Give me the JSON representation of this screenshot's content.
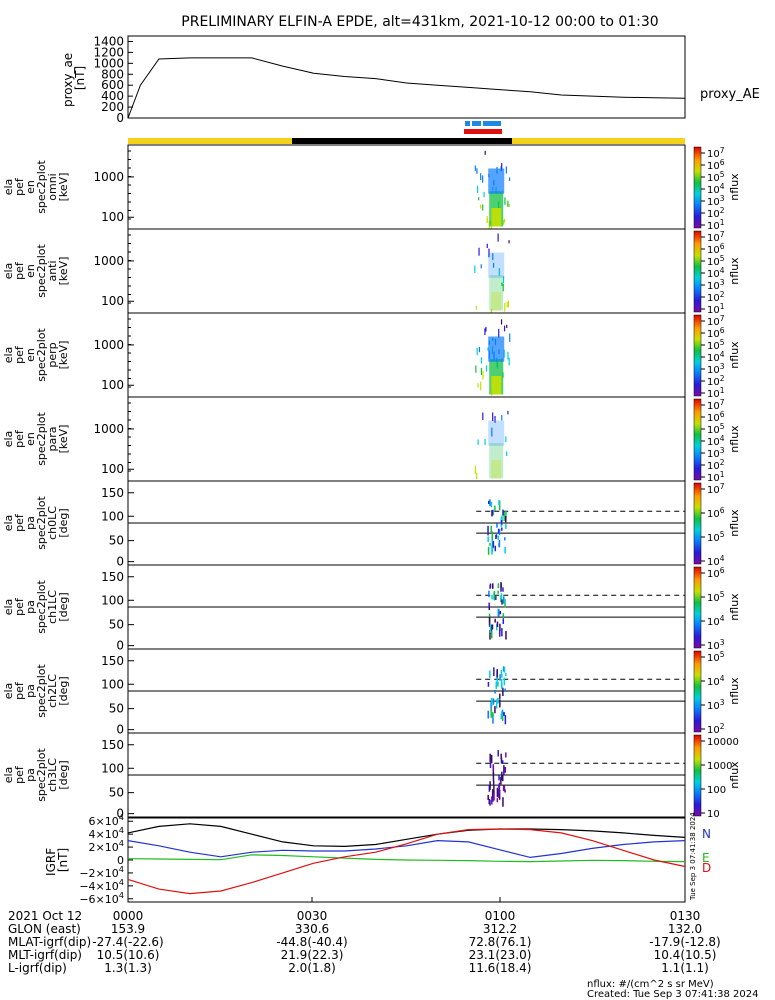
{
  "title": "PRELIMINARY ELFIN-A EPDE, alt=431km, 2021-10-12 00:00 to 01:30",
  "colors": {
    "background": "#ffffff",
    "axis": "#000000",
    "bar_yellow": "#f5d21a",
    "bar_black": "#000000",
    "marker_blue": "#1e88e5",
    "marker_red": "#e01010",
    "grf_n": "#2233cc",
    "grf_e": "#22bb22",
    "grf_d": "#dd1111",
    "grf_total": "#000000"
  },
  "chart_data": [
    {
      "type": "line",
      "id": "proxy_ae",
      "ylabel_lines": [
        "proxy_ae",
        "[nT]"
      ],
      "series_label": "proxy_AE",
      "y_ticks": [
        0,
        200,
        400,
        600,
        800,
        1000,
        1200,
        1400
      ],
      "ylim": [
        0,
        1500
      ],
      "x_minutes": [
        0,
        2,
        5,
        10,
        20,
        25,
        30,
        35,
        40,
        45,
        50,
        55,
        60,
        65,
        70,
        75,
        80,
        85,
        90
      ],
      "values": [
        0,
        600,
        1080,
        1100,
        1100,
        950,
        820,
        760,
        720,
        640,
        600,
        560,
        520,
        480,
        420,
        400,
        380,
        370,
        360
      ]
    },
    {
      "type": "heatmap",
      "id": "en_spec_omni",
      "ylabel_lines": [
        "ela",
        "pef",
        "en",
        "spec2plot",
        "omni",
        "[keV]"
      ],
      "y_scale": "log",
      "y_ticks": [
        "1000",
        "100"
      ],
      "colorbar_label": "nflux",
      "colorbar_ticks": [
        "10^7",
        "10^6",
        "10^5",
        "10^4",
        "10^3",
        "10^2",
        "10^1"
      ]
    },
    {
      "type": "heatmap",
      "id": "en_spec_anti",
      "ylabel_lines": [
        "ela",
        "pef",
        "en",
        "spec2plot",
        "anti",
        "[keV]"
      ],
      "y_scale": "log",
      "y_ticks": [
        "1000",
        "100"
      ],
      "colorbar_label": "nflux",
      "colorbar_ticks": [
        "10^7",
        "10^6",
        "10^5",
        "10^4",
        "10^3",
        "10^2",
        "10^1"
      ]
    },
    {
      "type": "heatmap",
      "id": "en_spec_perp",
      "ylabel_lines": [
        "ela",
        "pef",
        "en",
        "spec2plot",
        "perp",
        "[keV]"
      ],
      "y_scale": "log",
      "y_ticks": [
        "1000",
        "100"
      ],
      "colorbar_label": "nflux",
      "colorbar_ticks": [
        "10^7",
        "10^6",
        "10^5",
        "10^4",
        "10^3",
        "10^2",
        "10^1"
      ]
    },
    {
      "type": "heatmap",
      "id": "en_spec_para",
      "ylabel_lines": [
        "ela",
        "pef",
        "en",
        "spec2plot",
        "para",
        "[keV]"
      ],
      "y_scale": "log",
      "y_ticks": [
        "1000",
        "100"
      ],
      "colorbar_label": "nflux",
      "colorbar_ticks": [
        "10^7",
        "10^6",
        "10^5",
        "10^4",
        "10^3",
        "10^2",
        "10^1"
      ]
    },
    {
      "type": "heatmap",
      "id": "pa_ch0LC",
      "ylabel_lines": [
        "ela",
        "pef",
        "pa",
        "spec2plot",
        "ch0LC",
        "[deg]"
      ],
      "y_ticks": [
        "150",
        "100",
        "50",
        "0"
      ],
      "colorbar_label": "nflux",
      "colorbar_ticks": [
        "10^7",
        "10^6",
        "10^5",
        "10^4"
      ]
    },
    {
      "type": "heatmap",
      "id": "pa_ch1LC",
      "ylabel_lines": [
        "ela",
        "pef",
        "pa",
        "spec2plot",
        "ch1LC",
        "[deg]"
      ],
      "y_ticks": [
        "150",
        "100",
        "50",
        "0"
      ],
      "colorbar_label": "nflux",
      "colorbar_ticks": [
        "10^6",
        "10^5",
        "10^4",
        "10^3"
      ]
    },
    {
      "type": "heatmap",
      "id": "pa_ch2LC",
      "ylabel_lines": [
        "ela",
        "pef",
        "pa",
        "spec2plot",
        "ch2LC",
        "[deg]"
      ],
      "y_ticks": [
        "150",
        "100",
        "50",
        "0"
      ],
      "colorbar_label": "nflux",
      "colorbar_ticks": [
        "10^5",
        "10^4",
        "10^3",
        "10^2"
      ]
    },
    {
      "type": "heatmap",
      "id": "pa_ch3LC",
      "ylabel_lines": [
        "ela",
        "pef",
        "pa",
        "spec2plot",
        "ch3LC",
        "[deg]"
      ],
      "y_ticks": [
        "150",
        "100",
        "50",
        "0"
      ],
      "colorbar_label": "nflux",
      "colorbar_ticks": [
        "10000",
        "1000",
        "100",
        "10"
      ]
    },
    {
      "type": "line",
      "id": "igrf",
      "ylabel_lines": [
        "IGRF",
        "[nT]"
      ],
      "y_ticks": [
        "6×10^4",
        "4×10^4",
        "2×10^4",
        "0",
        "−2×10^4",
        "−4×10^4",
        "−6×10^4"
      ],
      "ylim": [
        -65000,
        65000
      ],
      "x_minutes": [
        0,
        5,
        10,
        15,
        20,
        25,
        30,
        35,
        40,
        45,
        50,
        55,
        60,
        65,
        70,
        75,
        80,
        85,
        90
      ],
      "series": [
        {
          "name": "total",
          "label": "",
          "values": [
            42000,
            52000,
            56000,
            52000,
            40000,
            28000,
            22000,
            21000,
            24000,
            32000,
            40000,
            46000,
            48000,
            48000,
            47000,
            45000,
            42000,
            38000,
            35000
          ]
        },
        {
          "name": "N",
          "label": "N",
          "values": [
            30000,
            22000,
            12000,
            5000,
            12000,
            15000,
            14000,
            14000,
            17000,
            22000,
            30000,
            28000,
            16000,
            4000,
            10000,
            18000,
            24000,
            28000,
            30000
          ]
        },
        {
          "name": "E",
          "label": "E",
          "values": [
            2000,
            1500,
            1000,
            500,
            8000,
            7000,
            5000,
            3000,
            1000,
            0,
            -500,
            -1000,
            -2000,
            -2500,
            -1500,
            -500,
            -1000,
            -2000,
            -2500
          ]
        },
        {
          "name": "D",
          "label": "D",
          "values": [
            -30000,
            -45000,
            -52000,
            -48000,
            -35000,
            -20000,
            -5000,
            5000,
            12000,
            25000,
            40000,
            47000,
            48000,
            47000,
            42000,
            30000,
            15000,
            0,
            -10000
          ]
        }
      ]
    }
  ],
  "grf_side_label": "Tue Sep  3 07:41:38 2024",
  "footer": {
    "rows": [
      {
        "label": "2021 Oct 12",
        "values": [
          "0000",
          "0030",
          "0100",
          "0130"
        ]
      },
      {
        "label": "GLON (east)",
        "values": [
          "153.9",
          "330.6",
          "312.2",
          "132.0"
        ]
      },
      {
        "label": "MLAT-igrf(dip)",
        "values": [
          "-27.4(-22.6)",
          "-44.8(-40.4)",
          "72.8(76.1)",
          "-17.9(-12.8)"
        ]
      },
      {
        "label": "MLT-igrf(dip)",
        "values": [
          "10.5(10.6)",
          "21.9(22.3)",
          "23.1(23.0)",
          "10.4(10.5)"
        ]
      },
      {
        "label": "L-igrf(dip)",
        "values": [
          "1.3(1.3)",
          "2.0(1.8)",
          "11.6(18.4)",
          "1.1(1.1)"
        ]
      }
    ],
    "units": "nflux: #/(cm^2 s sr MeV)",
    "created": "Created: Tue Sep  3 07:41:38 2024"
  }
}
